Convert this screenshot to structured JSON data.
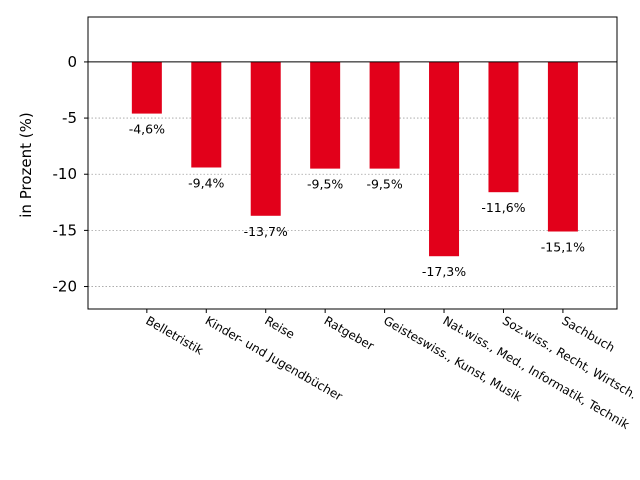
{
  "chart_data": {
    "type": "bar",
    "categories": [
      "Belletristik",
      "Kinder- und Jugendbücher",
      "Reise",
      "Ratgeber",
      "Geisteswiss., Kunst, Musik",
      "Nat.wiss., Med., Informatik, Technik",
      "Soz.wiss., Recht, Wirtsch.",
      "Sachbuch"
    ],
    "values": [
      -4.6,
      -9.4,
      -13.7,
      -9.5,
      -9.5,
      -17.3,
      -11.6,
      -15.1
    ],
    "data_labels": [
      "-4,6%",
      "-9,4%",
      "-13,7%",
      "-9,5%",
      "-9,5%",
      "-17,3%",
      "-11,6%",
      "-15,1%"
    ],
    "ylabel": "in Prozent (%)",
    "xlabel": "",
    "title": "",
    "ylim": [
      -22,
      4
    ],
    "yticks": [
      0,
      -5,
      -10,
      -15,
      -20
    ],
    "ytick_labels": [
      "0",
      "-5",
      "-10",
      "-15",
      "-20"
    ],
    "grid": "horizontal dotted",
    "bar_color": "#e2001a",
    "zero_line_color": "#000000"
  }
}
